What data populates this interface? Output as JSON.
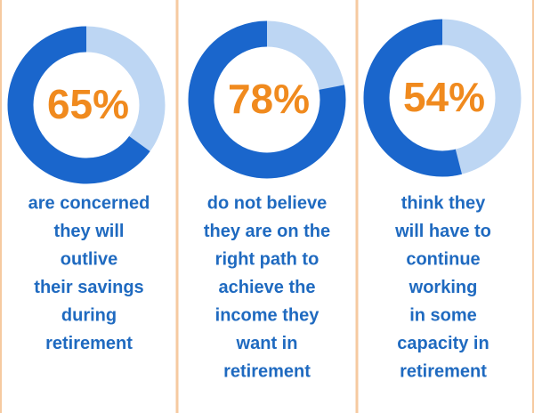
{
  "chart_data": [
    {
      "type": "donut",
      "values": [
        65
      ],
      "value_labels": [
        "65%"
      ],
      "color": "#1a66cc",
      "track_color": "#bdd6f3",
      "caption": [
        "are concerned",
        "they will",
        "outlive",
        "their savings",
        "during",
        "retirement"
      ]
    },
    {
      "type": "donut",
      "values": [
        78
      ],
      "value_labels": [
        "78%"
      ],
      "color": "#1a66cc",
      "track_color": "#bdd6f3",
      "caption": [
        "do not believe",
        "they are on the",
        "right path to",
        "achieve the",
        "income they",
        "want in",
        "retirement"
      ]
    },
    {
      "type": "donut",
      "values": [
        54
      ],
      "value_labels": [
        "54%"
      ],
      "color": "#1a66cc",
      "track_color": "#bdd6f3",
      "caption": [
        "think they",
        "will have to",
        "continue",
        "working",
        "in some",
        "capacity in",
        "retirement"
      ]
    }
  ]
}
